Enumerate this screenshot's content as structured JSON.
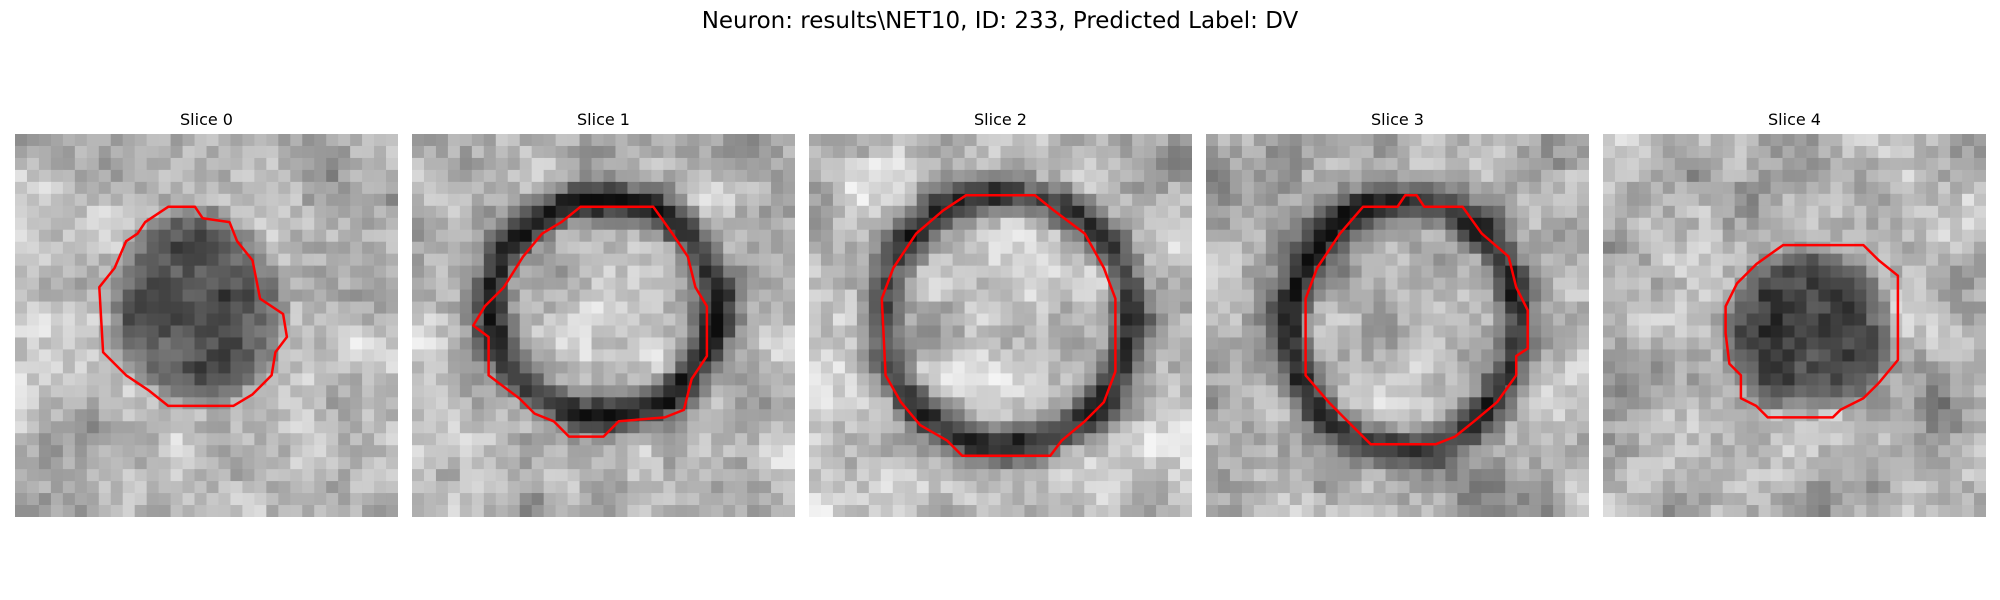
{
  "figure": {
    "title": "Neuron: results\\NET10, ID: 233, Predicted Label: DV",
    "outline_color": "#ff0000"
  },
  "panels": [
    {
      "title": "Slice 0"
    },
    {
      "title": "Slice 1"
    },
    {
      "title": "Slice 2"
    },
    {
      "title": "Slice 3"
    },
    {
      "title": "Slice 4"
    }
  ]
}
